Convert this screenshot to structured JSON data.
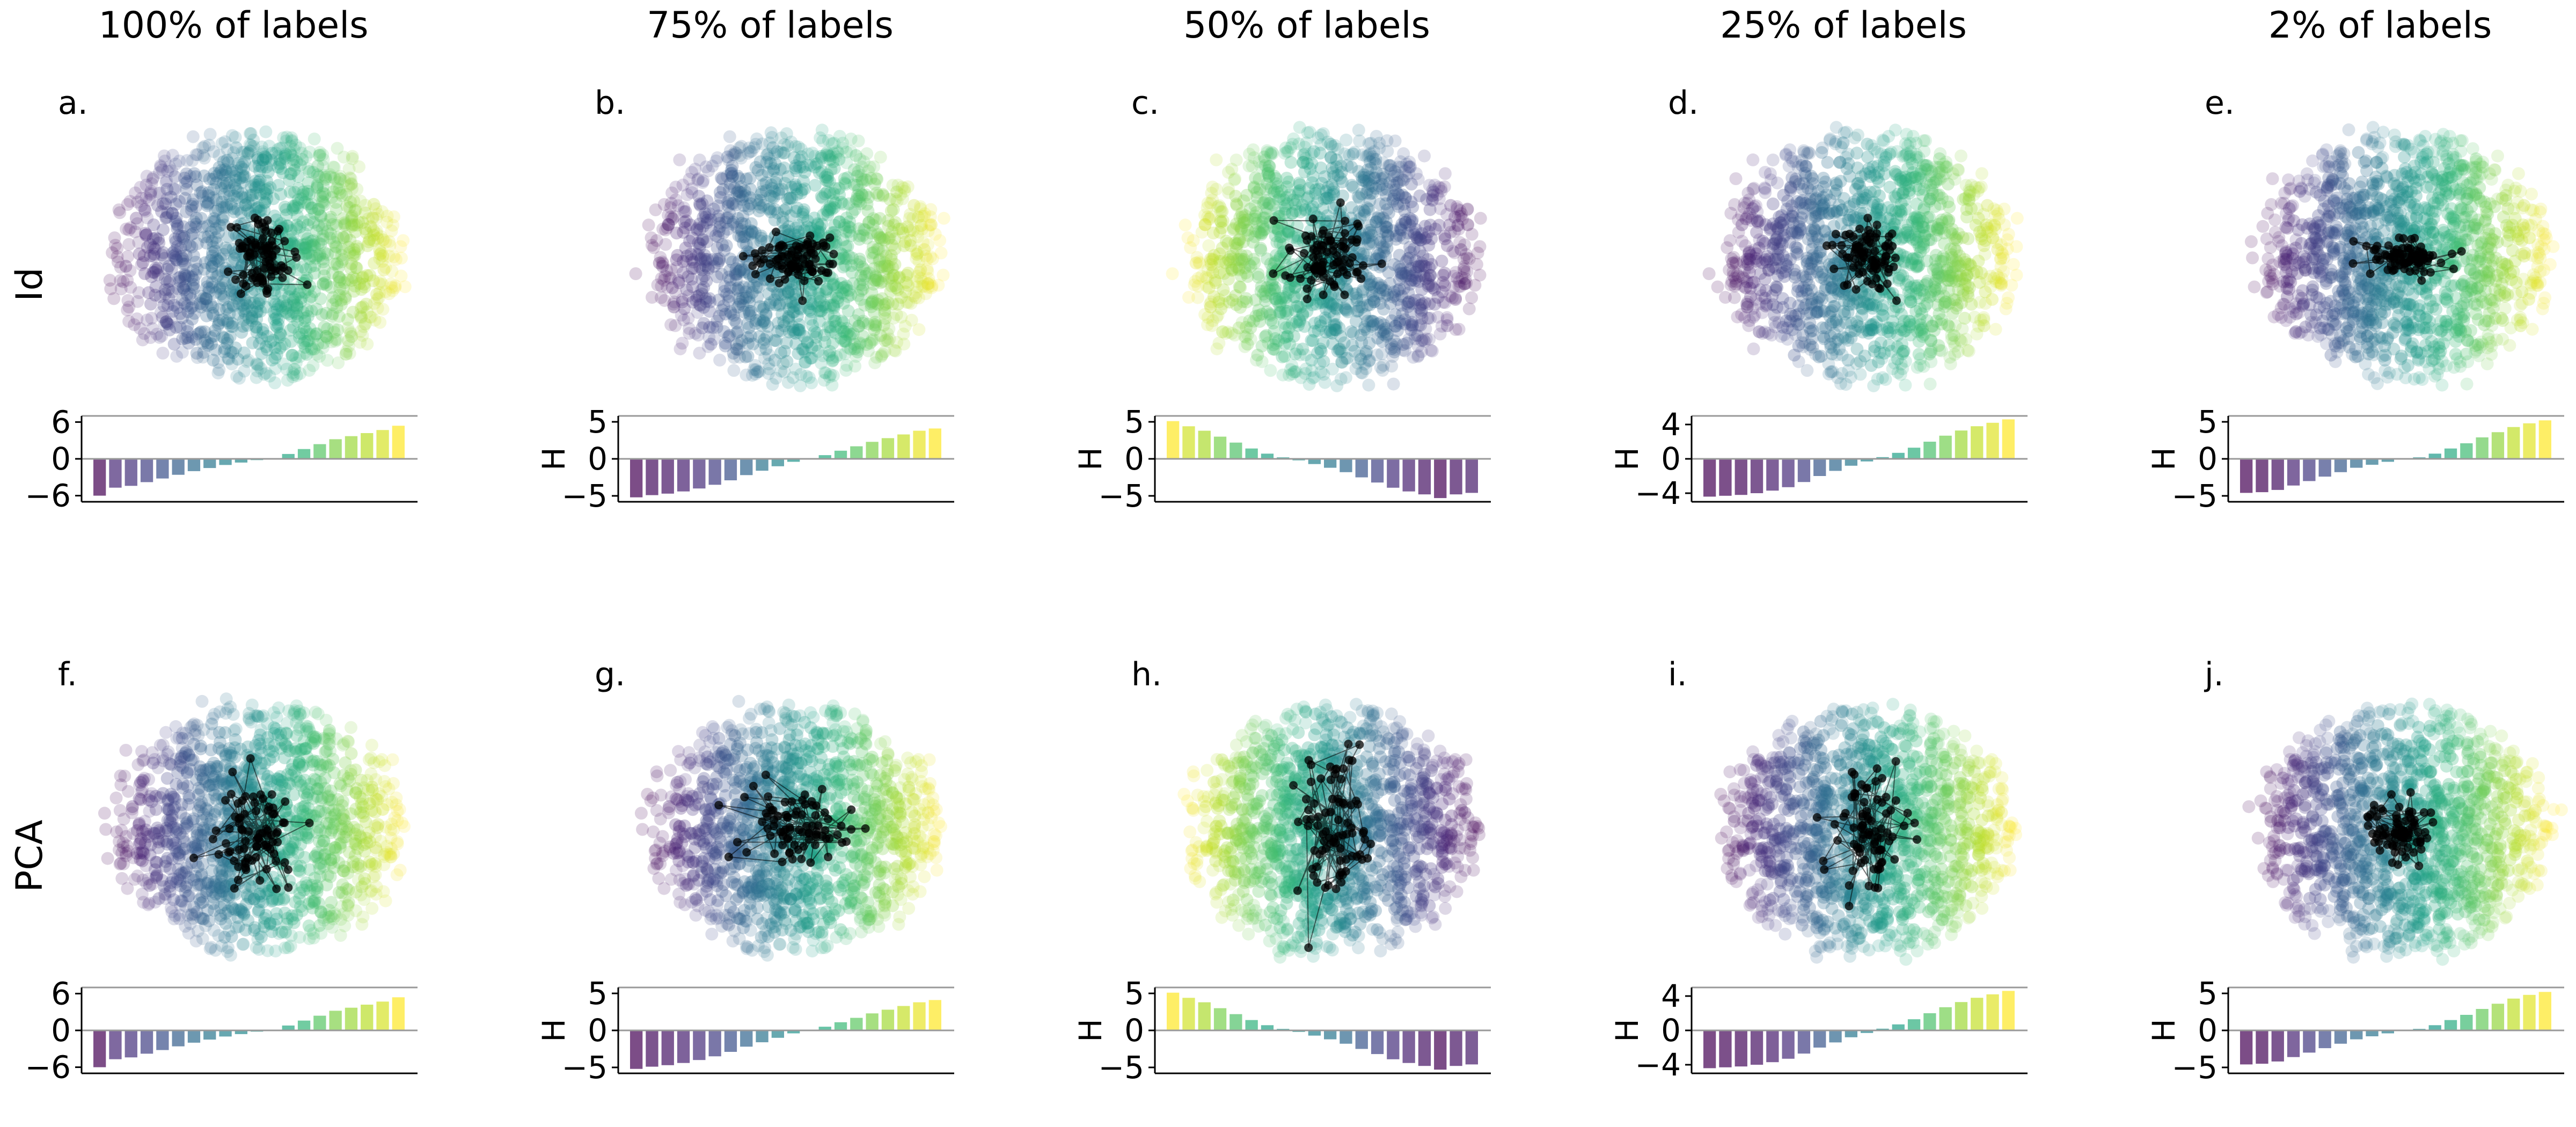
{
  "colors": {
    "viridis": [
      "#440154",
      "#482878",
      "#3e4989",
      "#31688e",
      "#26828e",
      "#1f9e89",
      "#35b779",
      "#6ece58",
      "#b5de2b",
      "#fde725"
    ],
    "trajectory": "#000000",
    "spine": "#000000",
    "zero_line": "#999999"
  },
  "column_titles": [
    "100% of labels",
    "75% of labels",
    "50% of labels",
    "25% of labels",
    "2% of labels"
  ],
  "row_labels": [
    "Id",
    "PCA"
  ],
  "chart_data": [
    {
      "panel": "a.",
      "type": "scatter",
      "row": "Id",
      "column": "100% of labels",
      "description_tag": "latent-scatter",
      "color_direction": "left-to-right",
      "trajectory_spread": [
        1,
        1.5
      ],
      "bar": {
        "type": "bar",
        "ylabel": "",
        "yticks": [
          -6,
          0,
          6
        ],
        "ylim": [
          -7,
          7
        ],
        "values": [
          -6,
          -4.7,
          -4.4,
          -3.8,
          -3.2,
          -2.6,
          -2,
          -1.5,
          -1,
          -0.6,
          -0.2,
          0.1,
          0.8,
          1.6,
          2.4,
          3.2,
          3.7,
          4.2,
          4.7,
          5.4
        ]
      }
    },
    {
      "panel": "b.",
      "type": "scatter",
      "row": "Id",
      "column": "75% of labels",
      "description_tag": "latent-scatter",
      "color_direction": "left-to-right",
      "trajectory_spread": [
        1.5,
        0.8
      ],
      "bar": {
        "type": "bar",
        "ylabel": "H",
        "yticks": [
          -5,
          0,
          5
        ],
        "ylim": [
          -5.8,
          5.8
        ],
        "values": [
          -5.2,
          -4.9,
          -4.7,
          -4.4,
          -4,
          -3.5,
          -2.9,
          -2.2,
          -1.6,
          -1,
          -0.4,
          0,
          0.5,
          1.1,
          1.7,
          2.3,
          2.8,
          3.3,
          3.8,
          4.1
        ]
      }
    },
    {
      "panel": "c.",
      "type": "scatter",
      "row": "Id",
      "column": "50% of labels",
      "description_tag": "latent-scatter",
      "color_direction": "right-to-left",
      "trajectory_spread": [
        1.6,
        1.4
      ],
      "bar": {
        "type": "bar",
        "ylabel": "H",
        "yticks": [
          -5,
          0,
          5
        ],
        "ylim": [
          -5.8,
          5.8
        ],
        "values": [
          5.1,
          4.4,
          3.8,
          3,
          2.2,
          1.4,
          0.7,
          0.2,
          -0.2,
          -0.7,
          -1.2,
          -1.8,
          -2.5,
          -3.2,
          -3.9,
          -4.4,
          -4.8,
          -5.3,
          -4.8,
          -4.6
        ]
      }
    },
    {
      "panel": "d.",
      "type": "scatter",
      "row": "Id",
      "column": "25% of labels",
      "description_tag": "latent-scatter",
      "color_direction": "left-to-right",
      "trajectory_spread": [
        1,
        1.2
      ],
      "bar": {
        "type": "bar",
        "ylabel": "H",
        "yticks": [
          -4,
          0,
          4
        ],
        "ylim": [
          -5,
          5
        ],
        "values": [
          -4.4,
          -4.3,
          -4.2,
          -4,
          -3.7,
          -3.3,
          -2.7,
          -2,
          -1.4,
          -0.8,
          -0.3,
          0.2,
          0.7,
          1.3,
          2,
          2.7,
          3.3,
          3.8,
          4.2,
          4.6
        ]
      }
    },
    {
      "panel": "e.",
      "type": "scatter",
      "row": "Id",
      "column": "2% of labels",
      "description_tag": "latent-scatter",
      "color_direction": "left-to-right",
      "trajectory_spread": [
        1.4,
        0.55
      ],
      "bar": {
        "type": "bar",
        "ylabel": "H",
        "yticks": [
          -5,
          0,
          5
        ],
        "ylim": [
          -5.8,
          5.8
        ],
        "values": [
          -4.6,
          -4.5,
          -4.2,
          -3.6,
          -3,
          -2.4,
          -1.8,
          -1.2,
          -0.8,
          -0.4,
          -0.1,
          0.2,
          0.7,
          1.4,
          2.1,
          2.9,
          3.6,
          4.3,
          4.8,
          5.2
        ]
      }
    },
    {
      "panel": "f.",
      "type": "scatter",
      "row": "PCA",
      "column": "100% of labels",
      "description_tag": "latent-scatter",
      "color_direction": "left-to-right",
      "trajectory_spread": [
        1.4,
        1.6
      ],
      "bar": {
        "type": "bar",
        "ylabel": "",
        "yticks": [
          -6,
          0,
          6
        ],
        "ylim": [
          -7,
          7
        ],
        "values": [
          -6,
          -4.7,
          -4.4,
          -3.8,
          -3.2,
          -2.6,
          -2,
          -1.5,
          -1,
          -0.6,
          -0.2,
          0.1,
          0.8,
          1.6,
          2.4,
          3.2,
          3.7,
          4.2,
          4.7,
          5.4
        ]
      }
    },
    {
      "panel": "g.",
      "type": "scatter",
      "row": "PCA",
      "column": "75% of labels",
      "description_tag": "latent-scatter",
      "color_direction": "left-to-right",
      "trajectory_spread": [
        1.8,
        1.2
      ],
      "bar": {
        "type": "bar",
        "ylabel": "H",
        "yticks": [
          -5,
          0,
          5
        ],
        "ylim": [
          -5.8,
          5.8
        ],
        "values": [
          -5.2,
          -4.9,
          -4.7,
          -4.4,
          -4,
          -3.5,
          -2.9,
          -2.2,
          -1.6,
          -1,
          -0.4,
          0,
          0.5,
          1.1,
          1.7,
          2.3,
          2.8,
          3.3,
          3.8,
          4.1
        ]
      }
    },
    {
      "panel": "h.",
      "type": "scatter",
      "row": "PCA",
      "column": "50% of labels",
      "description_tag": "latent-scatter",
      "color_direction": "right-to-left",
      "trajectory_spread": [
        1.2,
        2.6
      ],
      "bar": {
        "type": "bar",
        "ylabel": "H",
        "yticks": [
          -5,
          0,
          5
        ],
        "ylim": [
          -5.8,
          5.8
        ],
        "values": [
          5.1,
          4.4,
          3.8,
          3,
          2.2,
          1.4,
          0.7,
          0.2,
          -0.2,
          -0.7,
          -1.2,
          -1.8,
          -2.5,
          -3.2,
          -3.9,
          -4.4,
          -4.8,
          -5.3,
          -4.8,
          -4.6
        ]
      }
    },
    {
      "panel": "i.",
      "type": "scatter",
      "row": "PCA",
      "column": "25% of labels",
      "description_tag": "latent-scatter",
      "color_direction": "left-to-right",
      "trajectory_spread": [
        1.2,
        2
      ],
      "bar": {
        "type": "bar",
        "ylabel": "H",
        "yticks": [
          -4,
          0,
          4
        ],
        "ylim": [
          -5,
          5
        ],
        "values": [
          -4.4,
          -4.3,
          -4.2,
          -4,
          -3.7,
          -3.3,
          -2.7,
          -2,
          -1.4,
          -0.8,
          -0.3,
          0.2,
          0.7,
          1.3,
          2,
          2.7,
          3.3,
          3.8,
          4.2,
          4.6
        ]
      }
    },
    {
      "panel": "j.",
      "type": "scatter",
      "row": "PCA",
      "column": "2% of labels",
      "description_tag": "latent-scatter",
      "color_direction": "left-to-right",
      "trajectory_spread": [
        1.2,
        0.9
      ],
      "bar": {
        "type": "bar",
        "ylabel": "H",
        "yticks": [
          -5,
          0,
          5
        ],
        "ylim": [
          -5.8,
          5.8
        ],
        "values": [
          -4.6,
          -4.5,
          -4.2,
          -3.6,
          -3,
          -2.4,
          -1.8,
          -1.2,
          -0.8,
          -0.4,
          -0.1,
          0.2,
          0.7,
          1.4,
          2.1,
          2.9,
          3.6,
          4.3,
          4.8,
          5.2
        ]
      }
    }
  ]
}
